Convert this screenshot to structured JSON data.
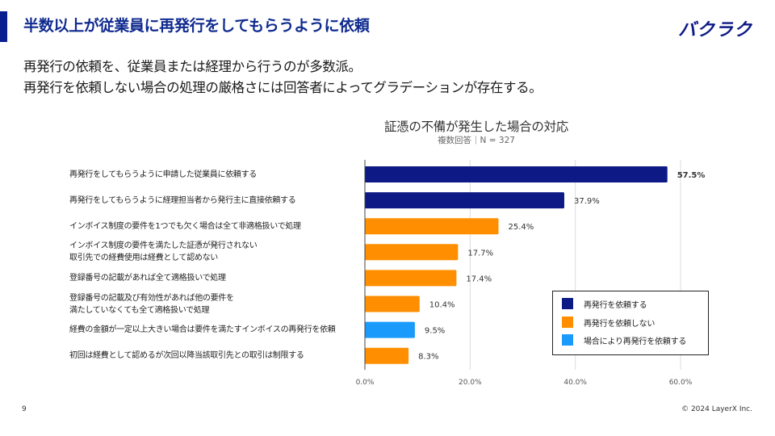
{
  "slide": {
    "title": "半数以上が従業員に再発行をしてもらうように依頼",
    "logo_text": "バクラク",
    "lead_lines": [
      "再発行の依頼を、従業員または経理から行うのが多数派。",
      "再発行を依頼しない場合の処理の厳格さには回答者によってグラデーションが存在する。"
    ],
    "page_number": "9",
    "copyright": "© 2024 LayerX Inc.",
    "accent_color": "#0a1f8f"
  },
  "chart_data": {
    "type": "bar",
    "orientation": "horizontal",
    "title": "証憑の不備が発生した場合の対応",
    "subtitle": "複数回答｜N = 327",
    "xlabel": "",
    "ylabel": "",
    "xlim": [
      0,
      60
    ],
    "x_ticks": [
      "0.0%",
      "20.0%",
      "40.0%",
      "60.0%"
    ],
    "x_tick_values": [
      0,
      20,
      40,
      60
    ],
    "grid": true,
    "legend_position": "bottom-right",
    "categories": [
      [
        "再発行をしてもらうように申請した従業員に依頼する"
      ],
      [
        "再発行をしてもらうように経理担当者から発行主に直接依頼する"
      ],
      [
        "インボイス制度の要件を1つでも欠く場合は全て非適格扱いで処理"
      ],
      [
        "インボイス制度の要件を満たした証憑が発行されない",
        "取引先での経費使用は経費として認めない"
      ],
      [
        "登録番号の記載があれば全て適格扱いで処理"
      ],
      [
        "登録番号の記載及び有効性があれば他の要件を",
        "満たしていなくても全て適格扱いで処理"
      ],
      [
        "経費の金額が一定以上大きい場合は要件を満たすインボイスの再発行を依頼"
      ],
      [
        "初回は経費として認めるが次回以降当該取引先との取引は制限する"
      ]
    ],
    "values": [
      57.5,
      37.9,
      25.4,
      17.7,
      17.4,
      10.4,
      9.5,
      8.3
    ],
    "value_labels": [
      "57.5%",
      "37.9%",
      "25.4%",
      "17.7%",
      "17.4%",
      "10.4%",
      "9.5%",
      "8.3%"
    ],
    "groups": [
      0,
      0,
      1,
      1,
      1,
      1,
      2,
      1
    ],
    "legend": [
      {
        "label": "再発行を依頼する",
        "color": "#0d1a85"
      },
      {
        "label": "再発行を依頼しない",
        "color": "#ff8f00"
      },
      {
        "label": "場合により再発行を依頼する",
        "color": "#1a9bfc"
      }
    ]
  }
}
